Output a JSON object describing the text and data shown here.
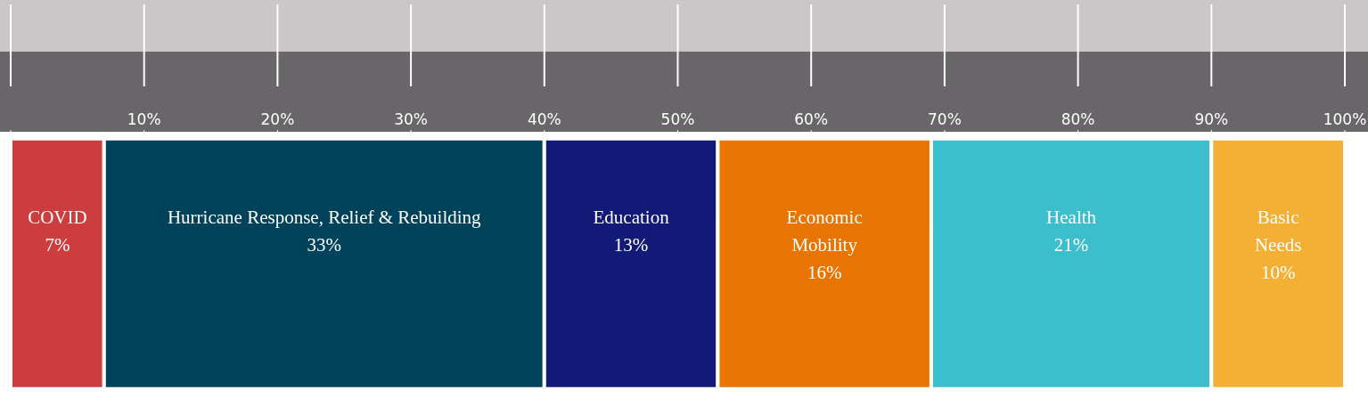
{
  "chart_data": {
    "type": "bar",
    "orientation": "horizontal",
    "stacked": true,
    "categories": [
      null
    ],
    "xlim": [
      0,
      100
    ],
    "xticks": [
      {
        "value": 0,
        "label": null
      },
      {
        "value": 10,
        "label": "10%"
      },
      {
        "value": 20,
        "label": "20%"
      },
      {
        "value": 30,
        "label": "30%"
      },
      {
        "value": 40,
        "label": "40%"
      },
      {
        "value": 50,
        "label": "50%"
      },
      {
        "value": 60,
        "label": "60%"
      },
      {
        "value": 70,
        "label": "70%"
      },
      {
        "value": 80,
        "label": "80%"
      },
      {
        "value": 90,
        "label": "90%"
      },
      {
        "value": 100,
        "label": "100%"
      }
    ],
    "series": [
      {
        "name": "COVID",
        "color": "#cc3d40",
        "values": [
          7
        ],
        "value_labels": [
          "7%"
        ]
      },
      {
        "name": "Hurricane Response, Relief & Rebuilding",
        "color": "#00425a",
        "values": [
          33
        ],
        "value_labels": [
          "33%"
        ]
      },
      {
        "name": "Education",
        "color": "#121a78",
        "values": [
          13
        ],
        "value_labels": [
          "13%"
        ]
      },
      {
        "name": "Economic Mobility",
        "color": "#e87502",
        "values": [
          16
        ],
        "value_labels": [
          "16%"
        ]
      },
      {
        "name": "Health",
        "color": "#3dbecc",
        "values": [
          21
        ],
        "value_labels": [
          "21%"
        ]
      },
      {
        "name": "Basic Needs",
        "color": "#f4b034",
        "values": [
          10
        ],
        "value_labels": [
          "10%"
        ]
      }
    ],
    "grid": false,
    "legend": false
  }
}
